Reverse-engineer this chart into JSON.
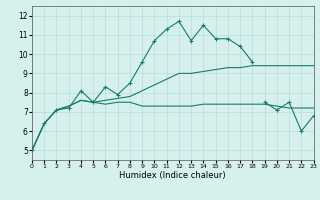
{
  "xlabel": "Humidex (Indice chaleur)",
  "xlim": [
    0,
    23
  ],
  "ylim": [
    4.5,
    12.5
  ],
  "yticks": [
    5,
    6,
    7,
    8,
    9,
    10,
    11,
    12
  ],
  "xticks": [
    0,
    1,
    2,
    3,
    4,
    5,
    6,
    7,
    8,
    9,
    10,
    11,
    12,
    13,
    14,
    15,
    16,
    17,
    18,
    19,
    20,
    21,
    22,
    23
  ],
  "bg_color": "#d6f0ee",
  "line_color": "#1a7a6e",
  "grid_color": "#b8ddd8",
  "lines": [
    {
      "x": [
        0,
        1,
        2,
        3,
        4,
        5,
        6,
        7,
        8,
        9,
        10,
        11,
        12,
        13,
        14,
        15,
        16,
        17,
        18
      ],
      "y": [
        5.0,
        6.4,
        7.1,
        7.2,
        8.1,
        7.5,
        8.3,
        7.9,
        8.5,
        9.6,
        10.7,
        11.3,
        11.7,
        10.7,
        11.5,
        10.8,
        10.8,
        10.4,
        9.6
      ],
      "marker": true
    },
    {
      "x": [
        0,
        1,
        2,
        3,
        4,
        5,
        6,
        7,
        8,
        9,
        10,
        11,
        12,
        13,
        14,
        15,
        16,
        17,
        18,
        19,
        20,
        21,
        22,
        23
      ],
      "y": [
        5.0,
        6.4,
        7.1,
        7.3,
        7.6,
        7.5,
        7.4,
        7.5,
        7.5,
        7.3,
        7.3,
        7.3,
        7.3,
        7.3,
        7.4,
        7.4,
        7.4,
        7.4,
        7.4,
        7.4,
        7.3,
        7.2,
        7.2,
        7.2
      ],
      "marker": false
    },
    {
      "x": [
        0,
        1,
        2,
        3,
        4,
        5,
        6,
        7,
        8,
        9,
        10,
        11,
        12,
        13,
        14,
        15,
        16,
        17,
        18,
        19,
        20,
        21,
        22,
        23
      ],
      "y": [
        5.0,
        6.4,
        7.1,
        7.3,
        7.6,
        7.5,
        7.6,
        7.7,
        7.8,
        8.1,
        8.4,
        8.7,
        9.0,
        9.0,
        9.1,
        9.2,
        9.3,
        9.3,
        9.4,
        9.4,
        9.4,
        9.4,
        9.4,
        9.4
      ],
      "marker": false
    },
    {
      "x": [
        19,
        20,
        21,
        22,
        23
      ],
      "y": [
        7.5,
        7.1,
        7.5,
        6.0,
        6.8
      ],
      "marker": true
    }
  ]
}
